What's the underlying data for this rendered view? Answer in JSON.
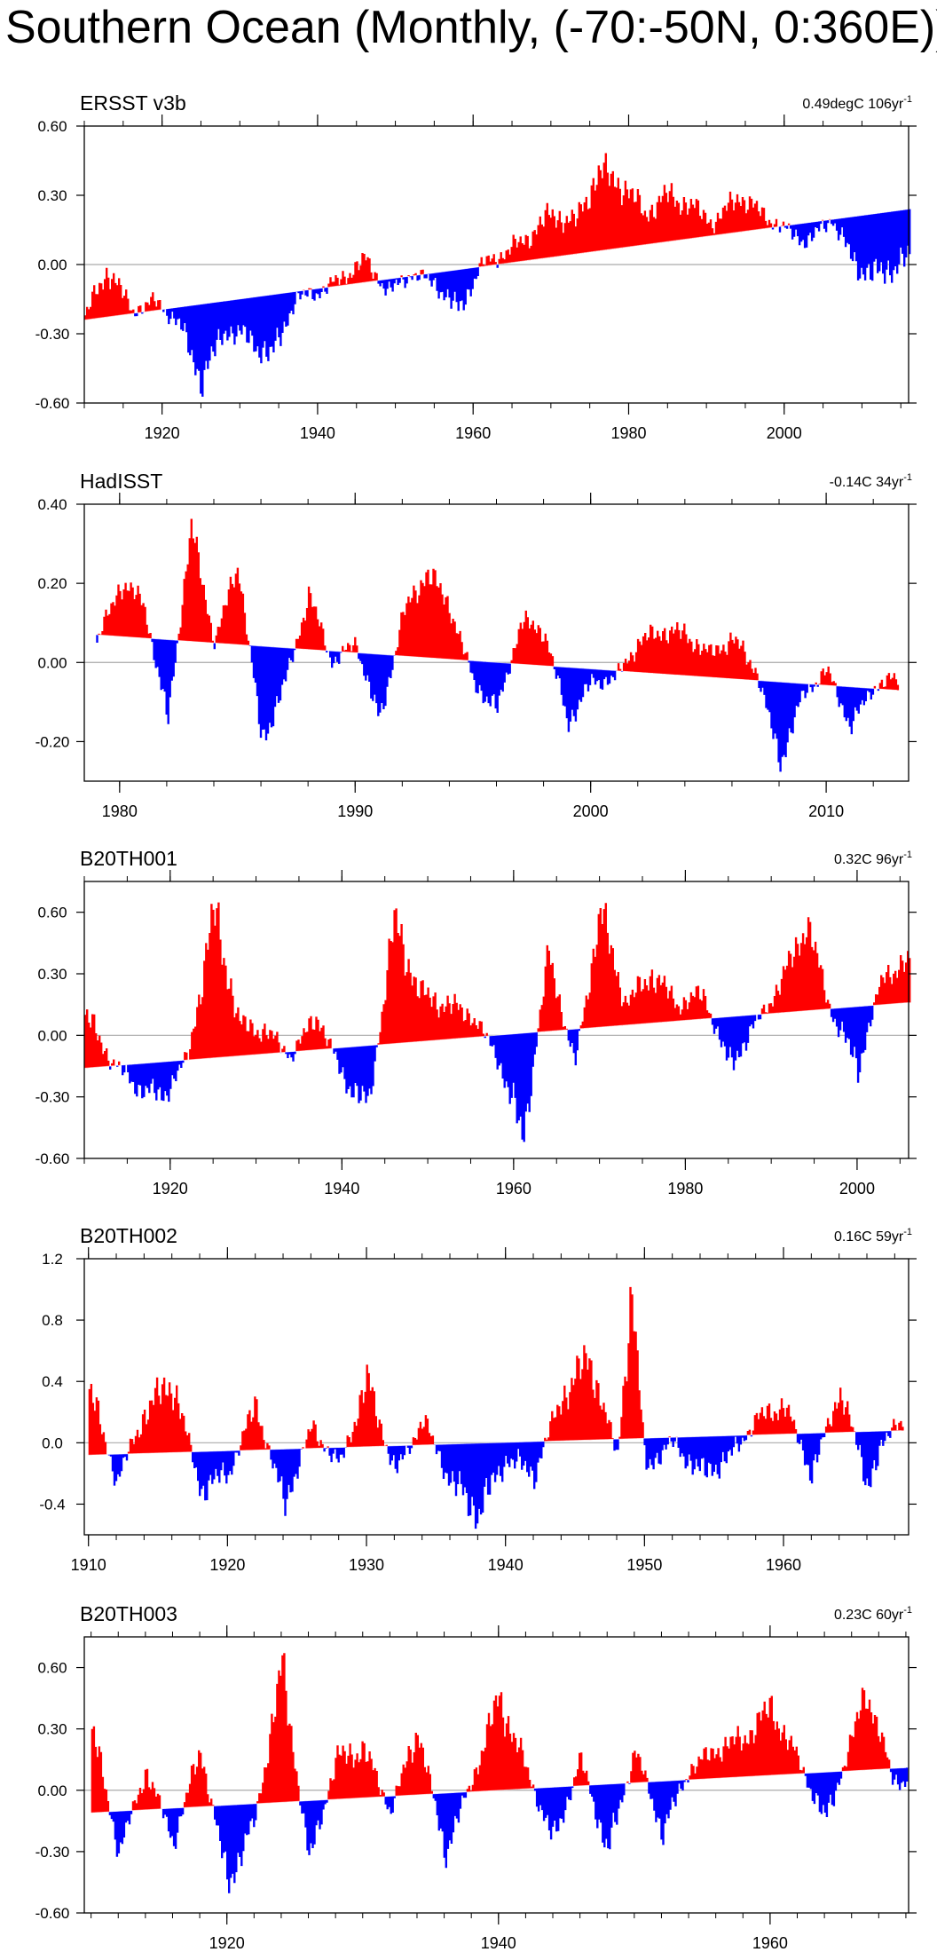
{
  "figure": {
    "title": "Southern Ocean (Monthly, (-70:-50N, 0:360E))"
  },
  "colors": {
    "positive": "#ff0000",
    "negative": "#0000ff",
    "zero_line": "#aaaaaa",
    "axis": "#000000"
  },
  "chart_data": [
    {
      "type": "area",
      "title": "ERSST v3b",
      "trend_label": "0.49degC 106yr",
      "trend_exponent": "-1",
      "xlim": [
        1910,
        2016
      ],
      "ylim": [
        -0.6,
        0.6
      ],
      "xticks": [
        1920,
        1940,
        1960,
        1980,
        2000
      ],
      "xtick_labels": [
        "1920",
        "1940",
        "1960",
        "1980",
        "2000"
      ],
      "yticks": [
        -0.6,
        -0.3,
        0.0,
        0.3,
        0.6
      ],
      "ytick_labels": [
        "-0.60",
        "-0.30",
        "0.00",
        "0.30",
        "0.60"
      ],
      "trend_line": {
        "start": [
          1910,
          -0.24
        ],
        "end": [
          2016,
          0.24
        ]
      },
      "series": [
        {
          "name": "anomaly",
          "x": [
            1910,
            1913,
            1916,
            1919,
            1922,
            1925,
            1928,
            1931,
            1934,
            1937,
            1940,
            1943,
            1946,
            1949,
            1952,
            1955,
            1958,
            1961,
            1964,
            1967,
            1970,
            1973,
            1976,
            1979,
            1982,
            1985,
            1988,
            1991,
            1994,
            1997,
            2000,
            2003,
            2006,
            2009,
            2012,
            2015
          ],
          "values": [
            -0.22,
            -0.02,
            -0.2,
            -0.16,
            -0.25,
            -0.5,
            -0.28,
            -0.32,
            -0.4,
            -0.15,
            -0.12,
            -0.06,
            0.02,
            -0.12,
            -0.04,
            -0.08,
            -0.2,
            0.0,
            0.05,
            0.12,
            0.22,
            0.18,
            0.4,
            0.35,
            0.22,
            0.3,
            0.25,
            0.18,
            0.3,
            0.22,
            0.15,
            0.1,
            0.2,
            0.0,
            -0.05,
            0.02
          ]
        }
      ]
    },
    {
      "type": "area",
      "title": "HadISST",
      "trend_label": "-0.14C 34yr",
      "trend_exponent": "-1",
      "xlim": [
        1978.5,
        2013.5
      ],
      "ylim": [
        -0.3,
        0.4
      ],
      "xticks": [
        1980,
        1990,
        2000,
        2010
      ],
      "xtick_labels": [
        "1980",
        "1990",
        "2000",
        "2010"
      ],
      "yticks": [
        -0.2,
        0.0,
        0.2,
        0.4
      ],
      "ytick_labels": [
        "-0.20",
        "0.00",
        "0.20",
        "0.40"
      ],
      "trend_line": {
        "start": [
          1979,
          0.07
        ],
        "end": [
          2013,
          -0.07
        ]
      },
      "series": [
        {
          "name": "anomaly",
          "x": [
            1979,
            1980,
            1981,
            1982,
            1983,
            1984,
            1985,
            1986,
            1987,
            1988,
            1989,
            1990,
            1991,
            1992,
            1993,
            1994,
            1995,
            1996,
            1997,
            1998,
            1999,
            2000,
            2001,
            2002,
            2003,
            2004,
            2005,
            2006,
            2007,
            2008,
            2009,
            2010,
            2011,
            2012,
            2013
          ],
          "values": [
            0.05,
            0.2,
            0.15,
            -0.15,
            0.34,
            0.05,
            0.25,
            -0.2,
            -0.05,
            0.17,
            0.0,
            0.05,
            -0.15,
            0.12,
            0.23,
            0.14,
            -0.05,
            -0.12,
            0.1,
            0.08,
            -0.15,
            -0.05,
            -0.04,
            0.05,
            0.08,
            0.07,
            0.02,
            0.06,
            -0.02,
            -0.25,
            -0.08,
            -0.02,
            -0.16,
            -0.06,
            -0.04
          ]
        }
      ]
    },
    {
      "type": "area",
      "title": "B20TH001",
      "trend_label": "0.32C 96yr",
      "trend_exponent": "-1",
      "xlim": [
        1910,
        2006
      ],
      "ylim": [
        -0.6,
        0.75
      ],
      "xticks": [
        1920,
        1940,
        1960,
        1980,
        2000
      ],
      "xtick_labels": [
        "1920",
        "1940",
        "1960",
        "1980",
        "2000"
      ],
      "yticks": [
        -0.6,
        -0.3,
        0.0,
        0.3,
        0.6
      ],
      "ytick_labels": [
        "-0.60",
        "-0.30",
        "0.00",
        "0.30",
        "0.60"
      ],
      "trend_line": {
        "start": [
          1910,
          -0.16
        ],
        "end": [
          2006,
          0.16
        ]
      },
      "series": [
        {
          "name": "anomaly",
          "x": [
            1910,
            1913,
            1916,
            1919,
            1922,
            1925,
            1928,
            1931,
            1934,
            1937,
            1940,
            1943,
            1946,
            1949,
            1952,
            1955,
            1958,
            1961,
            1964,
            1967,
            1970,
            1973,
            1976,
            1979,
            1982,
            1985,
            1988,
            1991,
            1994,
            1997,
            2000,
            2003,
            2006
          ],
          "values": [
            0.1,
            -0.12,
            -0.25,
            -0.3,
            -0.1,
            0.6,
            0.05,
            0.02,
            -0.1,
            0.1,
            -0.2,
            -0.35,
            0.55,
            0.2,
            0.15,
            0.1,
            -0.1,
            -0.5,
            0.4,
            -0.15,
            0.6,
            0.15,
            0.3,
            0.15,
            0.2,
            -0.15,
            0.05,
            0.25,
            0.55,
            0.1,
            -0.15,
            0.3,
            0.35
          ]
        }
      ]
    },
    {
      "type": "area",
      "title": "B20TH002",
      "trend_label": "0.16C 59yr",
      "trend_exponent": "-1",
      "xlim": [
        1909.7,
        1969
      ],
      "ylim": [
        -0.6,
        1.2
      ],
      "xticks": [
        1910,
        1920,
        1930,
        1940,
        1950,
        1960
      ],
      "xtick_labels": [
        "1910",
        "1920",
        "1930",
        "1940",
        "1950",
        "1960"
      ],
      "yticks": [
        -0.4,
        0.0,
        0.4,
        0.8,
        1.2
      ],
      "ytick_labels": [
        "-0.4",
        "0.0",
        "0.4",
        "0.8",
        "1.2"
      ],
      "trend_line": {
        "start": [
          1910,
          -0.08
        ],
        "end": [
          1968.5,
          0.08
        ]
      },
      "series": [
        {
          "name": "anomaly",
          "x": [
            1910,
            1912,
            1914,
            1916,
            1918,
            1920,
            1922,
            1924,
            1926,
            1928,
            1930,
            1932,
            1934,
            1936,
            1938,
            1940,
            1942,
            1944,
            1946,
            1948,
            1949,
            1950,
            1952,
            1954,
            1956,
            1958,
            1960,
            1962,
            1964,
            1966,
            1968
          ],
          "values": [
            0.35,
            -0.25,
            0.2,
            0.4,
            -0.3,
            -0.2,
            0.25,
            -0.4,
            0.1,
            -0.15,
            0.4,
            -0.2,
            0.15,
            -0.25,
            -0.45,
            -0.1,
            -0.2,
            0.3,
            0.55,
            -0.1,
            1.0,
            -0.15,
            0.0,
            -0.2,
            -0.1,
            0.15,
            0.25,
            -0.2,
            0.35,
            -0.25,
            0.15
          ]
        }
      ]
    },
    {
      "type": "area",
      "title": "B20TH003",
      "trend_label": "0.23C 60yr",
      "trend_exponent": "-1",
      "xlim": [
        1909.5,
        1970.2
      ],
      "ylim": [
        -0.6,
        0.75
      ],
      "xticks": [
        1920,
        1940,
        1960
      ],
      "xtick_labels": [
        "1920",
        "1940",
        "1960"
      ],
      "yticks": [
        -0.6,
        -0.3,
        0.0,
        0.3,
        0.6
      ],
      "ytick_labels": [
        "-0.60",
        "-0.30",
        "0.00",
        "0.30",
        "0.60"
      ],
      "trend_line": {
        "start": [
          1910,
          -0.11
        ],
        "end": [
          1970,
          0.11
        ]
      },
      "series": [
        {
          "name": "anomaly",
          "x": [
            1910,
            1912,
            1914,
            1916,
            1918,
            1920,
            1922,
            1924,
            1926,
            1928,
            1930,
            1932,
            1934,
            1936,
            1938,
            1940,
            1942,
            1944,
            1946,
            1948,
            1950,
            1952,
            1954,
            1956,
            1958,
            1960,
            1962,
            1964,
            1966,
            1967,
            1969
          ],
          "values": [
            0.3,
            -0.3,
            0.1,
            -0.25,
            0.2,
            -0.45,
            -0.15,
            0.6,
            -0.35,
            0.15,
            0.2,
            -0.1,
            0.3,
            -0.3,
            0.05,
            0.45,
            0.1,
            -0.25,
            0.15,
            -0.3,
            0.2,
            -0.2,
            0.1,
            0.2,
            0.25,
            0.4,
            0.15,
            -0.15,
            0.25,
            0.5,
            0.05
          ]
        }
      ]
    }
  ]
}
